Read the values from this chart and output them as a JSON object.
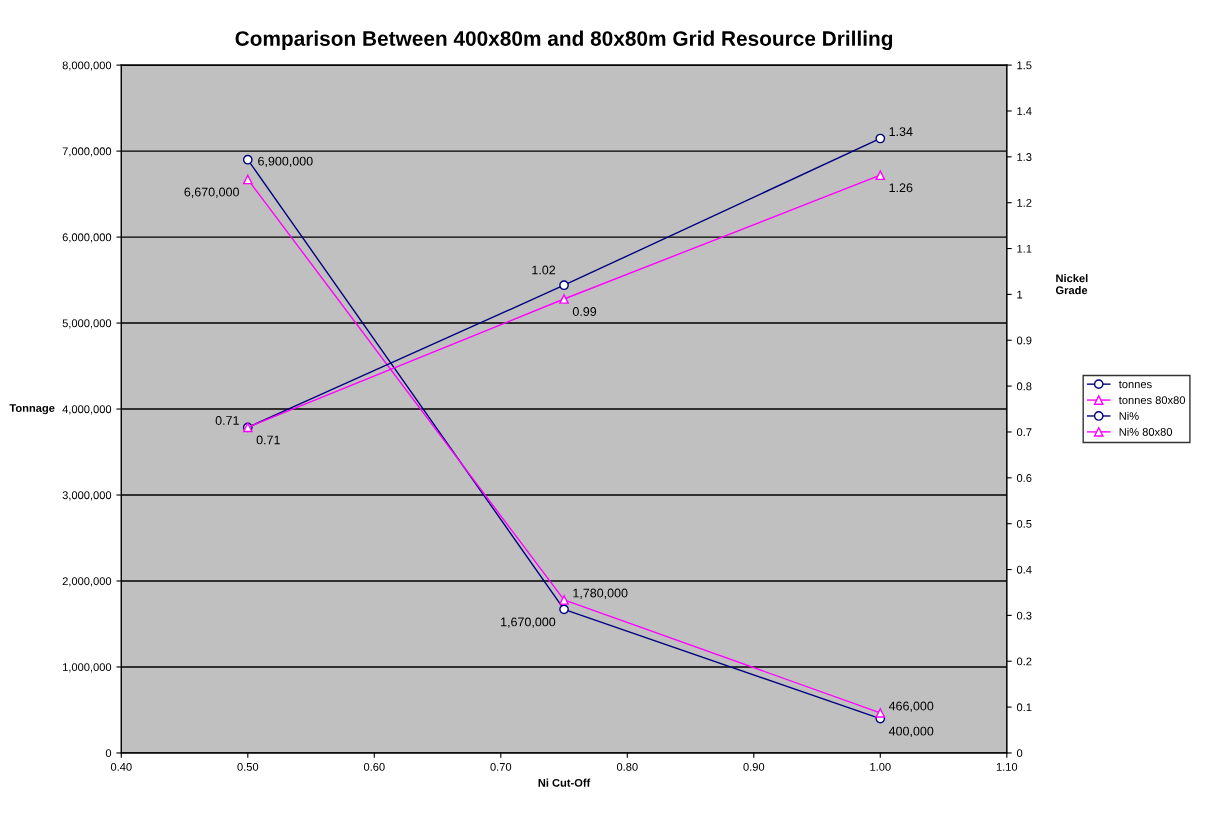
{
  "chart_data": {
    "type": "line",
    "title": "Comparison Between 400x80m and 80x80m Grid Resource Drilling",
    "x": [
      0.5,
      0.75,
      1.0
    ],
    "series": [
      {
        "name": "tonnes",
        "color": "#000080",
        "marker": "circle",
        "values": [
          6900000,
          1670000,
          400000
        ],
        "value_labels": [
          "6,900,000",
          "1,670,000",
          "400,000"
        ]
      },
      {
        "name": "tonnes 80x80",
        "color": "#ff00ff",
        "marker": "triangle",
        "values": [
          6670000,
          1780000,
          466000
        ],
        "value_labels": [
          "6,670,000",
          "1,780,000",
          "466,000"
        ]
      },
      {
        "name": "Ni%",
        "color": "#000080",
        "marker": "circle",
        "axis": "y2",
        "values": [
          0.71,
          1.02,
          1.34
        ],
        "value_labels": [
          "0.71",
          "1.02",
          "1.34"
        ]
      },
      {
        "name": "Ni% 80x80",
        "color": "#ff00ff",
        "marker": "triangle",
        "axis": "y2",
        "values": [
          0.71,
          0.99,
          1.26
        ],
        "value_labels": [
          "0.71",
          "0.99",
          "1.26"
        ]
      }
    ],
    "xlabel": "Ni Cut-Off",
    "ylabel": "Tonnage",
    "y2label": "Nickel\nGrade",
    "xlim": [
      0.4,
      1.1
    ],
    "xticks": [
      {
        "value": 0.4,
        "label": "0.40"
      },
      {
        "value": 0.5,
        "label": "0.50"
      },
      {
        "value": 0.6,
        "label": "0.60"
      },
      {
        "value": 0.7,
        "label": "0.70"
      },
      {
        "value": 0.8,
        "label": "0.80"
      },
      {
        "value": 0.9,
        "label": "0.90"
      },
      {
        "value": 1.0,
        "label": "1.00"
      },
      {
        "value": 1.1,
        "label": "1.10"
      }
    ],
    "ylim": [
      0,
      8000000
    ],
    "yticks": [
      0,
      {
        "value": 1000000,
        "label": "1,000,000"
      },
      {
        "value": 2000000,
        "label": "2,000,000"
      },
      {
        "value": 3000000,
        "label": "3,000,000"
      },
      {
        "value": 4000000,
        "label": "4,000,000"
      },
      {
        "value": 5000000,
        "label": "5,000,000"
      },
      {
        "value": 6000000,
        "label": "6,000,000"
      },
      {
        "value": 7000000,
        "label": "7,000,000"
      },
      {
        "value": 8000000,
        "label": "8,000,000"
      }
    ],
    "y2lim": [
      0,
      1.5
    ],
    "y2ticks": [
      0,
      0.1,
      0.2,
      0.3,
      0.4,
      0.5,
      0.6,
      0.7,
      0.8,
      0.9,
      1,
      1.1,
      1.2,
      1.3,
      1.4,
      1.5
    ],
    "grid": "y",
    "legend": "right",
    "line_style": "solid"
  }
}
